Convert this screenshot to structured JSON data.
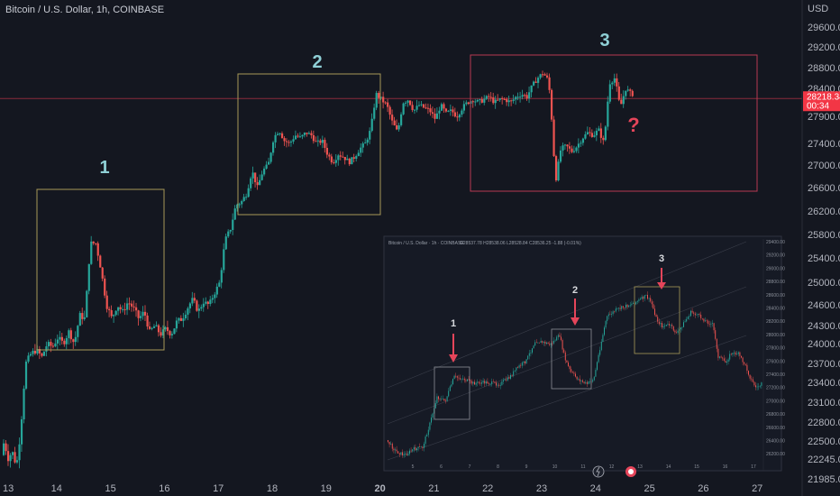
{
  "header": {
    "title": "Bitcoin / U.S. Dollar, 1h, COINBASE",
    "currency": "USD"
  },
  "price_tag": {
    "value": "28218.34",
    "countdown": "00:34",
    "color": "#f23645"
  },
  "annotations": {
    "box1_label": "1",
    "box2_label": "2",
    "box3_label": "3",
    "question": "?"
  },
  "colors": {
    "background": "#141720",
    "up": "#26a69a",
    "down": "#ef5350",
    "box_yellow": "#a79a58",
    "box_red": "#b83a52",
    "label_teal": "#8fd0d6"
  },
  "inset": {
    "title": "Bitcoin / U.S. Dollar · 1h · COINBASE",
    "ohlc": "O28537.78 H28538.06 L28528.84 C28536.25 -1.88 (-0.01%)",
    "marks": [
      "1",
      "2",
      "3"
    ],
    "x_labels": [
      "5",
      "6",
      "7",
      "8",
      "9",
      "10",
      "11",
      "12",
      "13",
      "14",
      "15",
      "16",
      "17"
    ],
    "y_labels": [
      "29400.00",
      "29200.00",
      "29000.00",
      "28800.00",
      "28600.00",
      "28400.00",
      "28200.00",
      "28000.00",
      "27800.00",
      "27600.00",
      "27400.00",
      "27200.00",
      "27000.00",
      "26800.00",
      "26600.00",
      "26400.00",
      "26200.00"
    ]
  },
  "chart_data": {
    "type": "candlestick",
    "title": "Bitcoin / U.S. Dollar, 1h, COINBASE",
    "ylabel": "USD",
    "ylim": [
      21900,
      30000
    ],
    "y_ticks": [
      29600,
      29200,
      28800,
      28400,
      27900,
      27400,
      27000,
      26600,
      26200,
      25800,
      25400,
      25000,
      24600,
      24300,
      24000,
      23700,
      23400,
      23100,
      22800,
      22500,
      22245,
      21985
    ],
    "y_tick_labels": [
      "29600.00",
      "29200.00",
      "28800.00",
      "28400.00",
      "27900.00",
      "27400.00",
      "27000.00",
      "26600.00",
      "26200.00",
      "25800.00",
      "25400.00",
      "25000.00",
      "24600.00",
      "24300.00",
      "24000.00",
      "23700.00",
      "23400.00",
      "23100.00",
      "22800.00",
      "22500.00",
      "22245.00",
      "21985.00"
    ],
    "x_labels": [
      "13",
      "14",
      "15",
      "16",
      "17",
      "18",
      "19",
      "20",
      "21",
      "22",
      "23",
      "24",
      "25",
      "26",
      "27"
    ],
    "x_label_bold": [
      "20"
    ],
    "last_price": 28218.34,
    "path": [
      [
        13.0,
        22300
      ],
      [
        13.05,
        22500
      ],
      [
        13.12,
        22250
      ],
      [
        13.2,
        22350
      ],
      [
        13.28,
        22150
      ],
      [
        13.35,
        22600
      ],
      [
        13.45,
        23700
      ],
      [
        13.55,
        23850
      ],
      [
        13.65,
        23900
      ],
      [
        13.75,
        23800
      ],
      [
        13.85,
        24000
      ],
      [
        13.95,
        23950
      ],
      [
        14.05,
        24100
      ],
      [
        14.15,
        24000
      ],
      [
        14.25,
        24200
      ],
      [
        14.35,
        24000
      ],
      [
        14.45,
        24450
      ],
      [
        14.55,
        24400
      ],
      [
        14.65,
        25650
      ],
      [
        14.75,
        25650
      ],
      [
        14.85,
        25200
      ],
      [
        14.95,
        24600
      ],
      [
        15.05,
        24400
      ],
      [
        15.15,
        24600
      ],
      [
        15.25,
        24500
      ],
      [
        15.35,
        24650
      ],
      [
        15.45,
        24550
      ],
      [
        15.55,
        24400
      ],
      [
        15.65,
        24500
      ],
      [
        15.75,
        24200
      ],
      [
        15.85,
        24300
      ],
      [
        15.95,
        24150
      ],
      [
        16.05,
        24250
      ],
      [
        16.15,
        24150
      ],
      [
        16.25,
        24350
      ],
      [
        16.35,
        24400
      ],
      [
        16.45,
        24550
      ],
      [
        16.55,
        24700
      ],
      [
        16.65,
        24500
      ],
      [
        16.75,
        24650
      ],
      [
        16.85,
        24600
      ],
      [
        16.95,
        24800
      ],
      [
        17.05,
        25000
      ],
      [
        17.15,
        25700
      ],
      [
        17.25,
        25900
      ],
      [
        17.35,
        26300
      ],
      [
        17.45,
        26350
      ],
      [
        17.55,
        26500
      ],
      [
        17.65,
        26900
      ],
      [
        17.75,
        26600
      ],
      [
        17.85,
        26900
      ],
      [
        17.95,
        27000
      ],
      [
        18.05,
        27500
      ],
      [
        18.15,
        27650
      ],
      [
        18.25,
        27450
      ],
      [
        18.35,
        27400
      ],
      [
        18.45,
        27550
      ],
      [
        18.55,
        27500
      ],
      [
        18.65,
        27600
      ],
      [
        18.75,
        27550
      ],
      [
        18.85,
        27400
      ],
      [
        18.95,
        27450
      ],
      [
        19.05,
        27200
      ],
      [
        19.15,
        27050
      ],
      [
        19.25,
        27200
      ],
      [
        19.35,
        27150
      ],
      [
        19.45,
        27050
      ],
      [
        19.55,
        27150
      ],
      [
        19.65,
        27300
      ],
      [
        19.75,
        27400
      ],
      [
        19.85,
        27650
      ],
      [
        19.95,
        28300
      ],
      [
        20.05,
        28200
      ],
      [
        20.15,
        28100
      ],
      [
        20.25,
        27800
      ],
      [
        20.35,
        27600
      ],
      [
        20.45,
        28150
      ],
      [
        20.55,
        28200
      ],
      [
        20.65,
        28000
      ],
      [
        20.75,
        28100
      ],
      [
        20.85,
        28050
      ],
      [
        20.95,
        28000
      ],
      [
        21.05,
        27850
      ],
      [
        21.15,
        28100
      ],
      [
        21.25,
        27950
      ],
      [
        21.35,
        28000
      ],
      [
        21.45,
        27900
      ],
      [
        21.55,
        28050
      ],
      [
        21.65,
        28150
      ],
      [
        21.75,
        28200
      ],
      [
        21.85,
        28150
      ],
      [
        21.95,
        28200
      ],
      [
        22.05,
        28250
      ],
      [
        22.15,
        28150
      ],
      [
        22.25,
        28200
      ],
      [
        22.35,
        28200
      ],
      [
        22.45,
        28150
      ],
      [
        22.55,
        28250
      ],
      [
        22.65,
        28300
      ],
      [
        22.75,
        28250
      ],
      [
        22.85,
        28450
      ],
      [
        22.95,
        28600
      ],
      [
        23.05,
        28700
      ],
      [
        23.15,
        28550
      ],
      [
        23.2,
        28000
      ],
      [
        23.28,
        26700
      ],
      [
        23.38,
        27300
      ],
      [
        23.48,
        27350
      ],
      [
        23.58,
        27250
      ],
      [
        23.68,
        27350
      ],
      [
        23.78,
        27500
      ],
      [
        23.88,
        27600
      ],
      [
        23.98,
        27550
      ],
      [
        24.08,
        27650
      ],
      [
        24.18,
        27400
      ],
      [
        24.28,
        28500
      ],
      [
        24.38,
        28600
      ],
      [
        24.48,
        28050
      ],
      [
        24.58,
        28400
      ],
      [
        24.68,
        28300
      ]
    ]
  }
}
